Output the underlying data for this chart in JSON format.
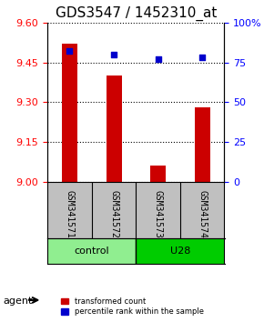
{
  "title": "GDS3547 / 1452310_at",
  "samples": [
    "GSM341571",
    "GSM341572",
    "GSM341573",
    "GSM341574"
  ],
  "red_values": [
    9.52,
    9.4,
    9.06,
    9.28
  ],
  "blue_values": [
    82,
    80,
    77,
    78
  ],
  "ylim_left": [
    9.0,
    9.6
  ],
  "ylim_right": [
    0,
    100
  ],
  "yticks_left": [
    9.0,
    9.15,
    9.3,
    9.45,
    9.6
  ],
  "yticks_right": [
    0,
    25,
    50,
    75,
    100
  ],
  "ytick_labels_right": [
    "0",
    "25",
    "50",
    "75",
    "100%"
  ],
  "groups": [
    {
      "label": "control",
      "samples": [
        "GSM341571",
        "GSM341572"
      ],
      "color": "#90ee90"
    },
    {
      "label": "U28",
      "samples": [
        "GSM341573",
        "GSM341574"
      ],
      "color": "#00cc00"
    }
  ],
  "bar_color": "#cc0000",
  "dot_color": "#0000cc",
  "bar_width": 0.35,
  "agent_label": "agent",
  "legend_red": "transformed count",
  "legend_blue": "percentile rank within the sample",
  "background_plot": "#ffffff",
  "background_sample": "#c0c0c0",
  "title_fontsize": 11,
  "tick_fontsize": 8,
  "label_fontsize": 8
}
